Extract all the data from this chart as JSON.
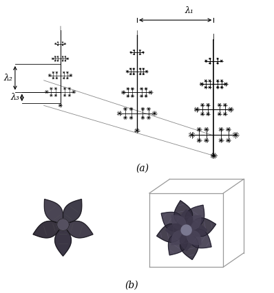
{
  "background_color": "#ffffff",
  "fig_width": 3.98,
  "fig_height": 4.26,
  "dpi": 100,
  "label_a": "(a)",
  "label_b": "(b)",
  "lambda1_label": "λ₁",
  "lambda2_label": "λ₂",
  "lambda3_label": "λ₃",
  "tree_color": "#222222",
  "arm_color_dark": "#2a2a35",
  "arm_color_mid": "#3a3545",
  "cube_color": "#888888"
}
